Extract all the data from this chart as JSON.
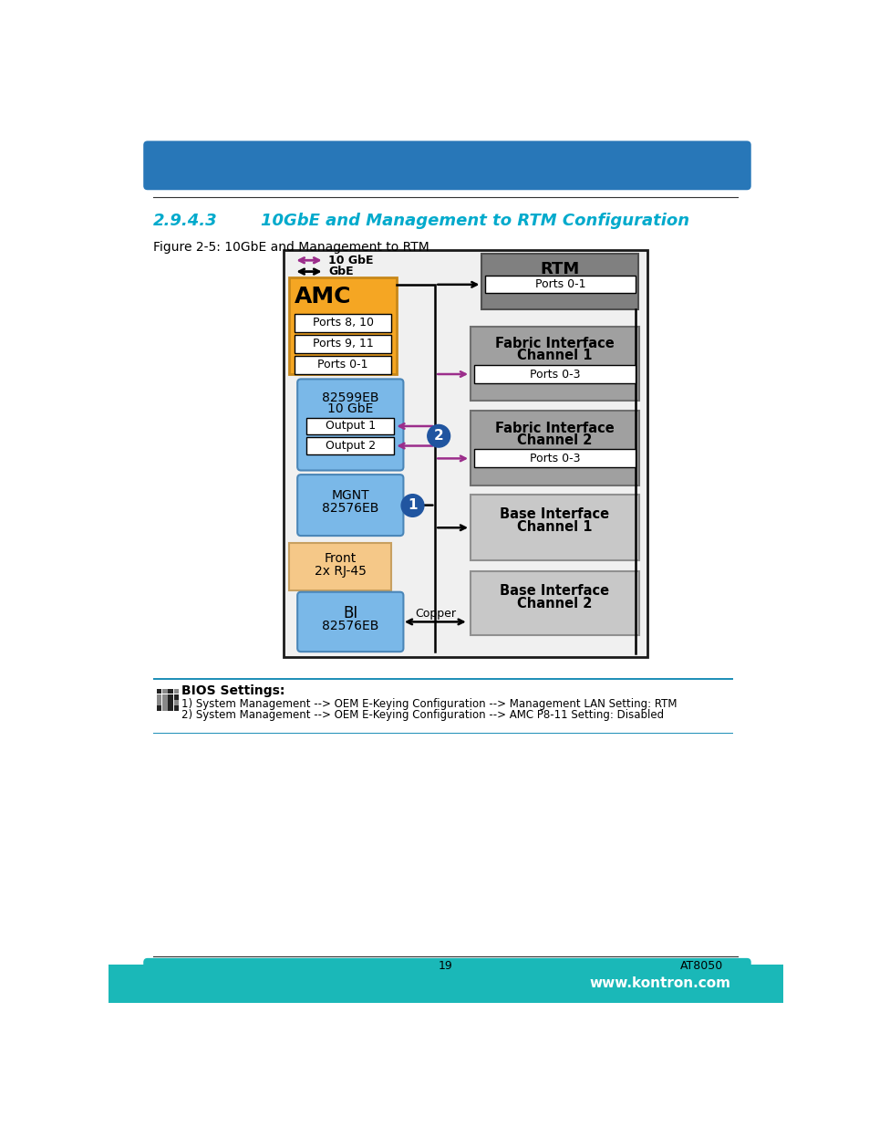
{
  "title_section": "2.9.4.3",
  "title_text": "10GbE and Management to RTM Configuration",
  "figure_label": "Figure 2-5: 10GbE and Management to RTM",
  "bg_color": "#ffffff",
  "header_blue": "#2877b8",
  "footer_teal": "#1ab8b8",
  "section_color": "#00aacc",
  "bios_text_1": "1) System Management --> OEM E-Keying Configuration --> Management LAN Setting: RTM",
  "bios_text_2": "2) System Management --> OEM E-Keying Configuration --> AMC P8-11 Setting: Disabled",
  "purple_color": "#9b2d8b",
  "black_color": "#000000",
  "amc_fill": "#f5a623",
  "amc_border": "#c8881a",
  "blue_fill": "#7ab8e8",
  "blue_border": "#4a86b8",
  "front_fill": "#f5c888",
  "front_border": "#c8a060",
  "rtm_fill": "#808080",
  "rtm_border": "#505050",
  "fabric_fill": "#a0a0a0",
  "fabric_border": "#707070",
  "base_fill": "#c8c8c8",
  "base_border": "#909090",
  "outer_box_color": "#1a1a1a",
  "circle_fill": "#2055a0",
  "circle_text": "#ffffff",
  "diag_bg": "#f0f0f0"
}
